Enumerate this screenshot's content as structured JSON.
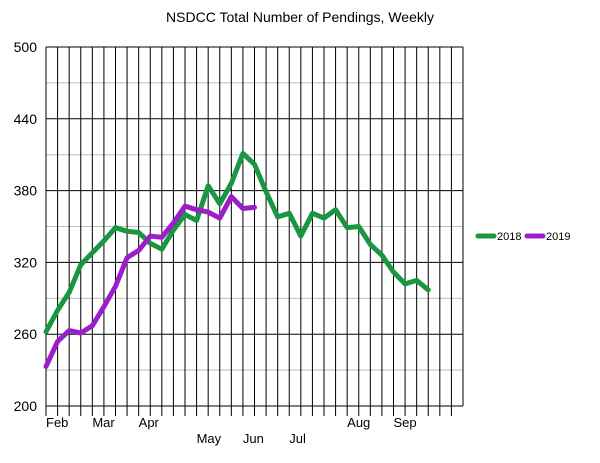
{
  "chart_data": {
    "type": "line",
    "title": "NSDCC Total Number of Pendings, Weekly",
    "xlabel": "",
    "ylabel": "",
    "ylim": [
      200,
      500
    ],
    "yticks": [
      200,
      260,
      320,
      380,
      440,
      500
    ],
    "grid": true,
    "legend_position": "right",
    "x_weeks": 36,
    "month_labels": [
      {
        "label": "Feb",
        "week": 0,
        "row": 1
      },
      {
        "label": "Mar",
        "week": 4,
        "row": 1
      },
      {
        "label": "Apr",
        "week": 8,
        "row": 1
      },
      {
        "label": "May",
        "week": 13,
        "row": 2
      },
      {
        "label": "Jun",
        "week": 17,
        "row": 2
      },
      {
        "label": "Jul",
        "week": 21,
        "row": 2
      },
      {
        "label": "Aug",
        "week": 26,
        "row": 1
      },
      {
        "label": "Sep",
        "week": 30,
        "row": 1
      }
    ],
    "series": [
      {
        "name": "2018",
        "color": "#1a9641",
        "values": [
          262,
          280,
          295,
          318,
          328,
          338,
          349,
          346,
          345,
          336,
          331,
          347,
          360,
          355,
          384,
          369,
          386,
          411,
          402,
          379,
          358,
          361,
          342,
          361,
          357,
          364,
          349,
          350,
          335,
          326,
          312,
          302,
          305,
          297
        ]
      },
      {
        "name": "2019",
        "color": "#9b1fc9",
        "values": [
          233,
          254,
          263,
          261,
          267,
          283,
          300,
          324,
          330,
          342,
          341,
          353,
          367,
          364,
          362,
          357,
          375,
          365,
          366
        ]
      }
    ]
  }
}
